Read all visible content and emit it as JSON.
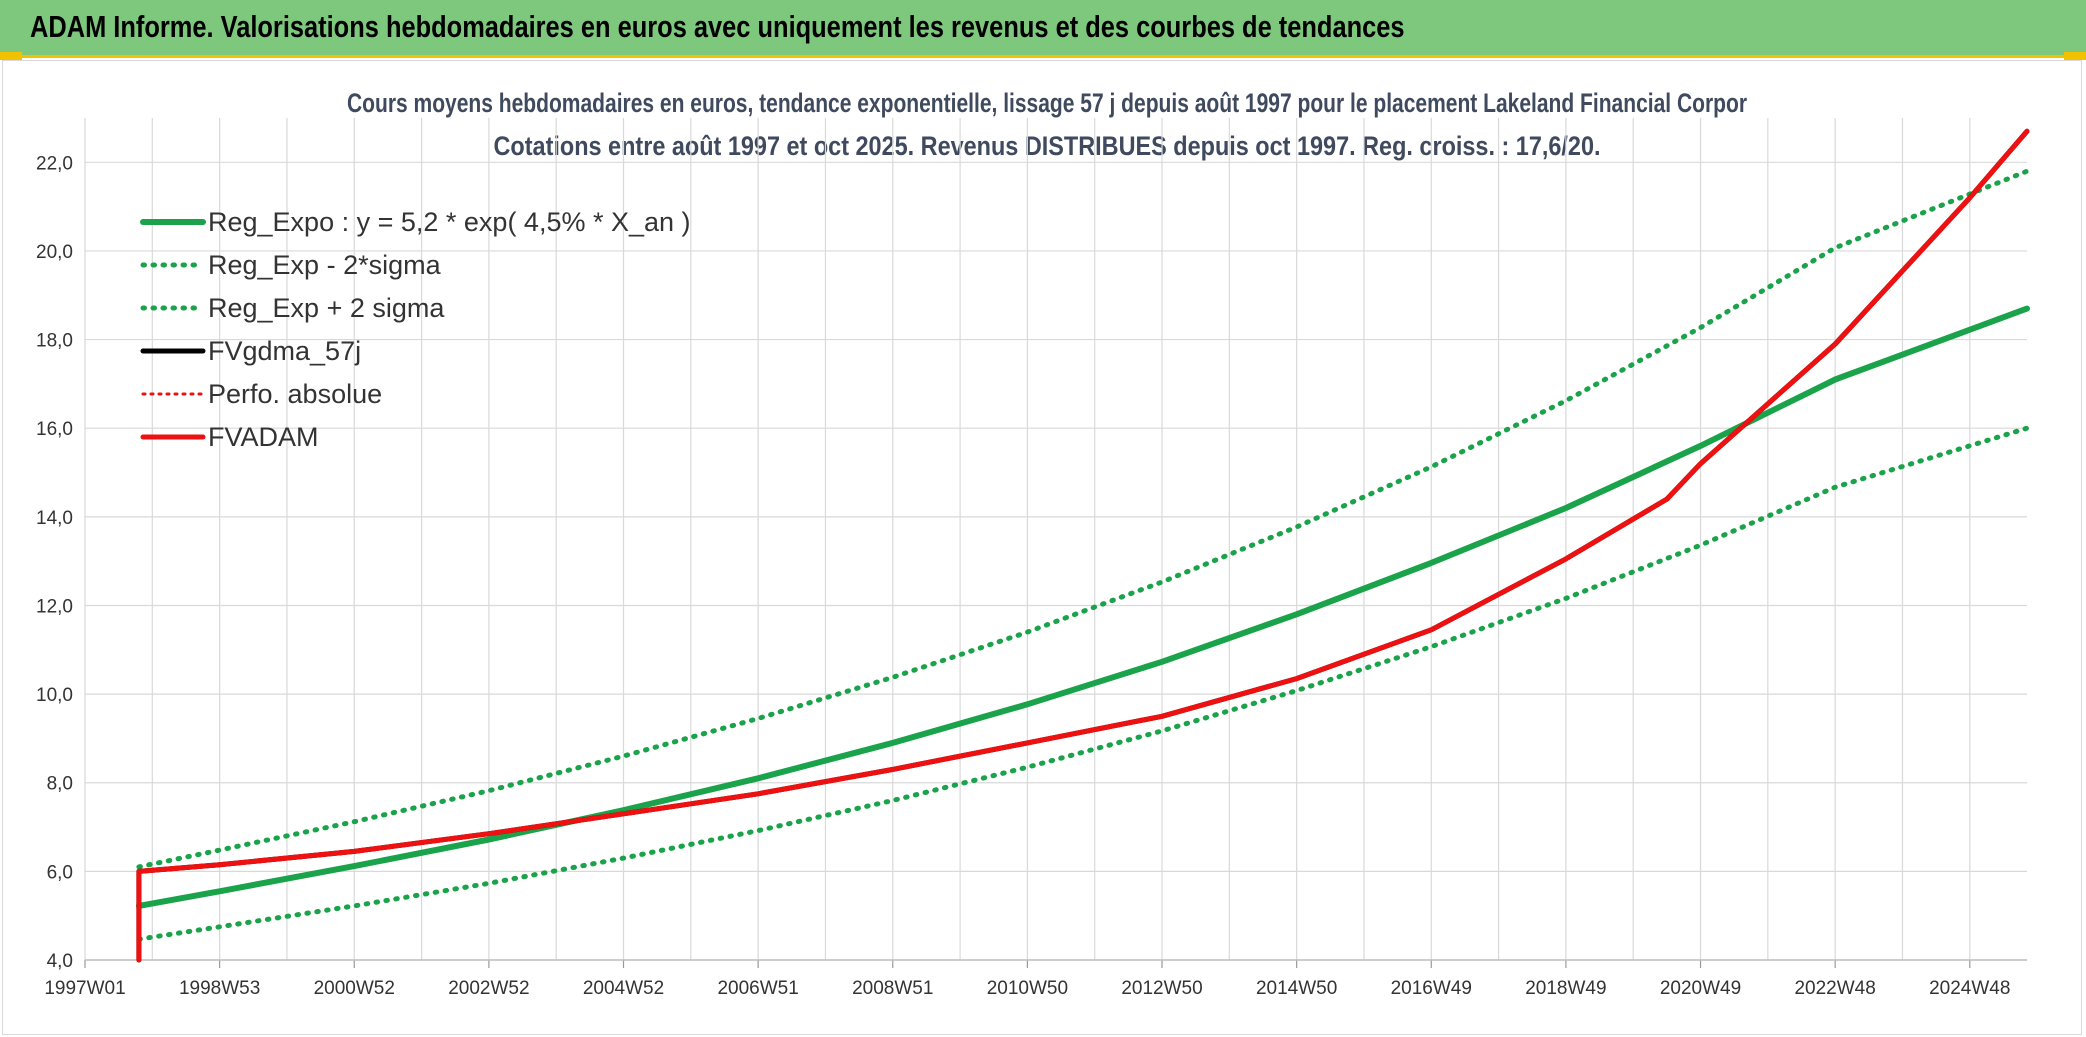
{
  "header": {
    "title": "ADAM Informe. Valorisations hebdomadaires en euros avec uniquement les revenus et des courbes de tendances"
  },
  "chart_data": {
    "type": "line",
    "title_line1": "Cours moyens hebdomadaires en euros, tendance exponentielle, lissage 57 j depuis août 1997 pour le placement Lakeland Financial Corpor",
    "title_line2": "Cotations entre août 1997 et oct 2025. Revenus DISTRIBUES depuis oct 1997. Reg. croiss. : 17,6/20.",
    "x_tick_labels": [
      "1997W01",
      "1998W53",
      "2000W52",
      "2002W52",
      "2004W52",
      "2006W51",
      "2008W51",
      "2010W50",
      "2012W50",
      "2014W50",
      "2016W49",
      "2018W49",
      "2020W49",
      "2022W48",
      "2024W48"
    ],
    "x_tick_years": [
      1997.0,
      1999.0,
      2001.0,
      2003.0,
      2005.0,
      2007.0,
      2009.0,
      2011.0,
      2013.0,
      2015.0,
      2017.0,
      2019.0,
      2021.0,
      2023.0,
      2025.0
    ],
    "xlim": [
      1997.0,
      2025.85
    ],
    "ylim": [
      4.0,
      23.0
    ],
    "y_ticks": [
      "4,0",
      "6,0",
      "8,0",
      "10,0",
      "12,0",
      "14,0",
      "16,0",
      "18,0",
      "20,0",
      "22,0"
    ],
    "y_tick_values": [
      4,
      6,
      8,
      10,
      12,
      14,
      16,
      18,
      20,
      22
    ],
    "grid": true,
    "legend_position": "top-left",
    "colors": {
      "green": "#1aa34a",
      "black": "#000000",
      "red": "#ee1111",
      "grid": "#d9d9d9"
    },
    "series": [
      {
        "name": "Reg_Expo : y = 5,2 * exp( 4,5% *  X_an )",
        "style": "solid",
        "color": "#1aa34a",
        "x": [
          1997.8,
          1999.0,
          2001.0,
          2003.0,
          2005.0,
          2007.0,
          2009.0,
          2011.0,
          2013.0,
          2015.0,
          2017.0,
          2019.0,
          2021.0,
          2023.0,
          2025.85
        ],
        "y": [
          5.22,
          5.55,
          6.12,
          6.72,
          7.38,
          8.1,
          8.9,
          9.77,
          10.73,
          11.8,
          12.96,
          14.2,
          15.6,
          17.1,
          18.7
        ]
      },
      {
        "name": "Reg_Exp - 2*sigma",
        "style": "dotted",
        "color": "#1aa34a",
        "x": [
          1997.8,
          1999.0,
          2001.0,
          2003.0,
          2005.0,
          2007.0,
          2009.0,
          2011.0,
          2013.0,
          2015.0,
          2017.0,
          2019.0,
          2021.0,
          2023.0,
          2025.85
        ],
        "y": [
          4.47,
          4.75,
          5.22,
          5.73,
          6.3,
          6.92,
          7.6,
          8.35,
          9.17,
          10.08,
          11.07,
          12.16,
          13.36,
          14.67,
          16.0
        ]
      },
      {
        "name": "Reg_Exp + 2 sigma",
        "style": "dotted",
        "color": "#1aa34a",
        "x": [
          1997.8,
          1999.0,
          2001.0,
          2003.0,
          2005.0,
          2007.0,
          2009.0,
          2011.0,
          2013.0,
          2015.0,
          2017.0,
          2019.0,
          2021.0,
          2023.0,
          2025.85
        ],
        "y": [
          6.1,
          6.48,
          7.12,
          7.82,
          8.6,
          9.45,
          10.38,
          11.4,
          12.53,
          13.77,
          15.13,
          16.62,
          18.27,
          20.07,
          21.8
        ]
      },
      {
        "name": "FVgdma_57j",
        "style": "solid",
        "color": "#000000",
        "x": [
          1997.8,
          1997.8,
          1999.0,
          2001.0,
          2003.0,
          2005.0,
          2007.0,
          2009.0,
          2011.0,
          2013.0,
          2015.0,
          2017.0,
          2019.0,
          2020.5,
          2021.0,
          2023.0,
          2025.0,
          2025.85
        ],
        "y": [
          4.0,
          6.0,
          6.15,
          6.45,
          6.85,
          7.3,
          7.75,
          8.3,
          8.9,
          9.5,
          10.35,
          11.45,
          13.05,
          14.4,
          15.2,
          17.9,
          21.2,
          22.7
        ]
      },
      {
        "name": "Perfo. absolue",
        "style": "dotted",
        "color": "#ee1111",
        "x": [
          1997.8,
          1997.8,
          1999.0,
          2001.0,
          2003.0,
          2005.0,
          2007.0,
          2009.0,
          2011.0,
          2013.0,
          2015.0,
          2017.0,
          2019.0,
          2020.5,
          2021.0,
          2023.0,
          2025.0,
          2025.85
        ],
        "y": [
          4.0,
          6.0,
          6.15,
          6.45,
          6.85,
          7.3,
          7.75,
          8.3,
          8.9,
          9.5,
          10.35,
          11.45,
          13.05,
          14.4,
          15.2,
          17.9,
          21.2,
          22.7
        ]
      },
      {
        "name": "FVADAM",
        "style": "solid",
        "color": "#ee1111",
        "x": [
          1997.8,
          1997.8,
          1999.0,
          2001.0,
          2003.0,
          2005.0,
          2007.0,
          2009.0,
          2011.0,
          2013.0,
          2015.0,
          2017.0,
          2019.0,
          2020.5,
          2021.0,
          2023.0,
          2025.0,
          2025.85
        ],
        "y": [
          4.0,
          6.0,
          6.15,
          6.45,
          6.85,
          7.3,
          7.75,
          8.3,
          8.9,
          9.5,
          10.35,
          11.45,
          13.05,
          14.4,
          15.2,
          17.9,
          21.2,
          22.7
        ]
      }
    ]
  }
}
